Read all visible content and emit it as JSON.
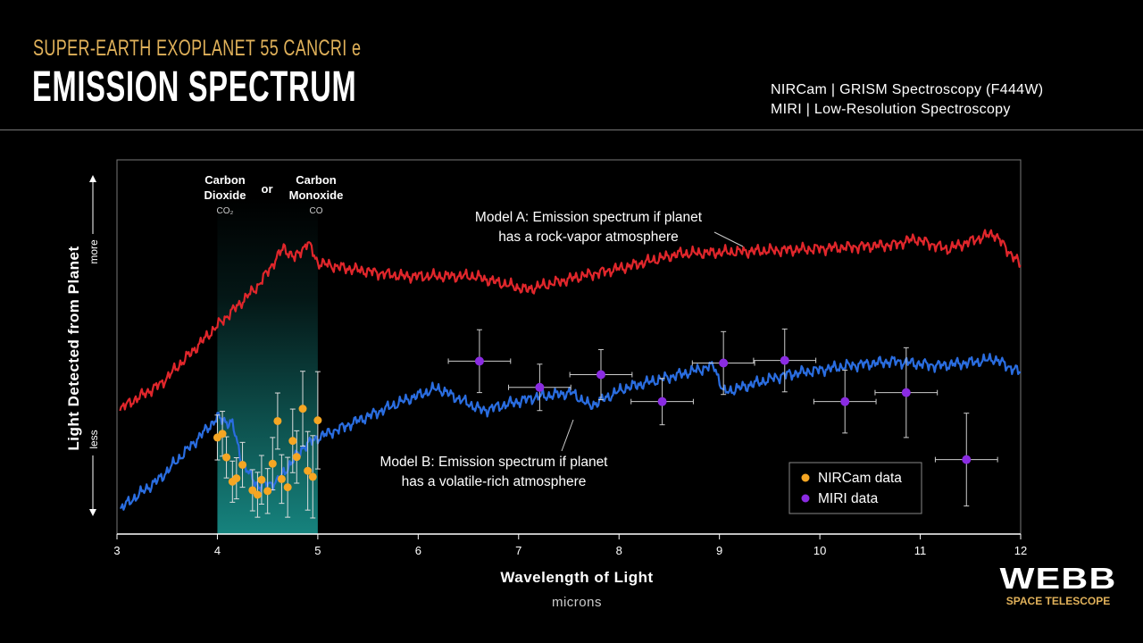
{
  "header": {
    "subtitle": "SUPER-EARTH EXOPLANET 55 CANCRI e",
    "title": "EMISSION SPECTRUM",
    "instruments": [
      "NIRCam | GRISM Spectroscopy (F444W)",
      "MIRI | Low-Resolution Spectroscopy"
    ]
  },
  "logo": {
    "name": "WEBB",
    "tagline": "SPACE TELESCOPE"
  },
  "chart_data": {
    "type": "line",
    "title": "EMISSION SPECTRUM",
    "xlabel": "Wavelength of Light",
    "xunit": "microns",
    "ylabel": "Light Detected from Planet",
    "y_more": "more",
    "y_less": "less",
    "xlim": [
      3,
      12
    ],
    "ylim": [
      0,
      100
    ],
    "y_scale": "relative (unlabeled, less to more)",
    "xticks": [
      3,
      4,
      5,
      6,
      7,
      8,
      9,
      10,
      11,
      12
    ],
    "grid": false,
    "legend_placement": "bottom-right",
    "colors": {
      "model_a": "#e0262b",
      "model_b": "#2a6de0",
      "nircam": "#f5a623",
      "miri": "#8a2be2",
      "band": "#1a9a94"
    },
    "highlight_band": {
      "range": [
        4,
        5
      ],
      "labels": [
        {
          "name": "Carbon Dioxide",
          "line1": "Carbon",
          "line2": "Dioxide",
          "formula": "CO₂"
        },
        {
          "name": "Carbon Monoxide",
          "line1": "Carbon",
          "line2": "Monoxide",
          "formula": "CO"
        }
      ],
      "joiner": "or"
    },
    "series": [
      {
        "name": "Model A",
        "label_line1": "Model A: Emission spectrum if planet",
        "label_line2": "has a rock-vapor atmosphere",
        "points": [
          [
            3.03,
            33.5
          ],
          [
            3.44,
            40.2
          ],
          [
            4.0,
            55.7
          ],
          [
            4.41,
            66.5
          ],
          [
            4.66,
            76.6
          ],
          [
            4.77,
            73.7
          ],
          [
            4.9,
            78.0
          ],
          [
            5.0,
            72.5
          ],
          [
            5.22,
            71.3
          ],
          [
            5.84,
            68.9
          ],
          [
            6.55,
            68.9
          ],
          [
            7.08,
            65.3
          ],
          [
            7.62,
            68.9
          ],
          [
            8.06,
            71.3
          ],
          [
            8.6,
            74.9
          ],
          [
            9.13,
            75.4
          ],
          [
            9.84,
            76.1
          ],
          [
            10.73,
            77.3
          ],
          [
            10.95,
            78.9
          ],
          [
            11.27,
            76.1
          ],
          [
            11.73,
            80.4
          ],
          [
            12.0,
            71.8
          ]
        ]
      },
      {
        "name": "Model B",
        "label_line1": "Model B: Emission spectrum if planet",
        "label_line2": "has a volatile-rich atmosphere",
        "points": [
          [
            3.03,
            6.7
          ],
          [
            3.44,
            15.1
          ],
          [
            4.0,
            31.1
          ],
          [
            4.15,
            29.4
          ],
          [
            4.25,
            18.7
          ],
          [
            4.41,
            12.7
          ],
          [
            4.59,
            13.9
          ],
          [
            4.86,
            23.4
          ],
          [
            5.0,
            25.8
          ],
          [
            5.22,
            28.2
          ],
          [
            5.84,
            35.4
          ],
          [
            6.19,
            39.0
          ],
          [
            6.64,
            33.0
          ],
          [
            7.17,
            36.6
          ],
          [
            7.53,
            37.8
          ],
          [
            7.71,
            34.2
          ],
          [
            8.06,
            39.0
          ],
          [
            8.6,
            42.6
          ],
          [
            8.95,
            45.0
          ],
          [
            9.04,
            37.8
          ],
          [
            9.66,
            42.6
          ],
          [
            10.29,
            45.0
          ],
          [
            10.73,
            46.2
          ],
          [
            11.18,
            45.0
          ],
          [
            11.62,
            46.2
          ],
          [
            11.73,
            46.9
          ],
          [
            12.0,
            43.1
          ]
        ]
      },
      {
        "name": "NIRCam data",
        "type": "scatter",
        "points": [
          [
            4.0,
            25.8,
            6
          ],
          [
            4.05,
            26.8,
            6
          ],
          [
            4.09,
            20.5,
            5.5
          ],
          [
            4.15,
            14.0,
            5.5
          ],
          [
            4.19,
            14.9,
            5.5
          ],
          [
            4.25,
            18.5,
            6
          ],
          [
            4.35,
            11.7,
            5.5
          ],
          [
            4.4,
            10.5,
            6
          ],
          [
            4.44,
            14.5,
            6.5
          ],
          [
            4.5,
            11.5,
            6
          ],
          [
            4.55,
            18.8,
            7
          ],
          [
            4.6,
            30.2,
            7.5
          ],
          [
            4.64,
            14.7,
            6.5
          ],
          [
            4.7,
            12.5,
            8
          ],
          [
            4.75,
            24.9,
            8.5
          ],
          [
            4.79,
            20.6,
            7
          ],
          [
            4.85,
            33.5,
            10
          ],
          [
            4.9,
            16.9,
            10.5
          ],
          [
            4.95,
            15.3,
            11
          ],
          [
            5.0,
            30.4,
            13
          ]
        ]
      },
      {
        "name": "MIRI data",
        "type": "scatter",
        "xerr": 0.31,
        "points": [
          [
            6.61,
            46.2,
            8.4
          ],
          [
            7.21,
            39.2,
            6.2
          ],
          [
            7.82,
            42.6,
            6.7
          ],
          [
            8.43,
            35.4,
            6.2
          ],
          [
            9.04,
            45.7,
            8.4
          ],
          [
            9.65,
            46.4,
            8.4
          ],
          [
            10.25,
            35.4,
            8.4
          ],
          [
            10.86,
            37.8,
            12.0
          ],
          [
            11.46,
            19.9,
            12.4
          ]
        ]
      }
    ]
  }
}
